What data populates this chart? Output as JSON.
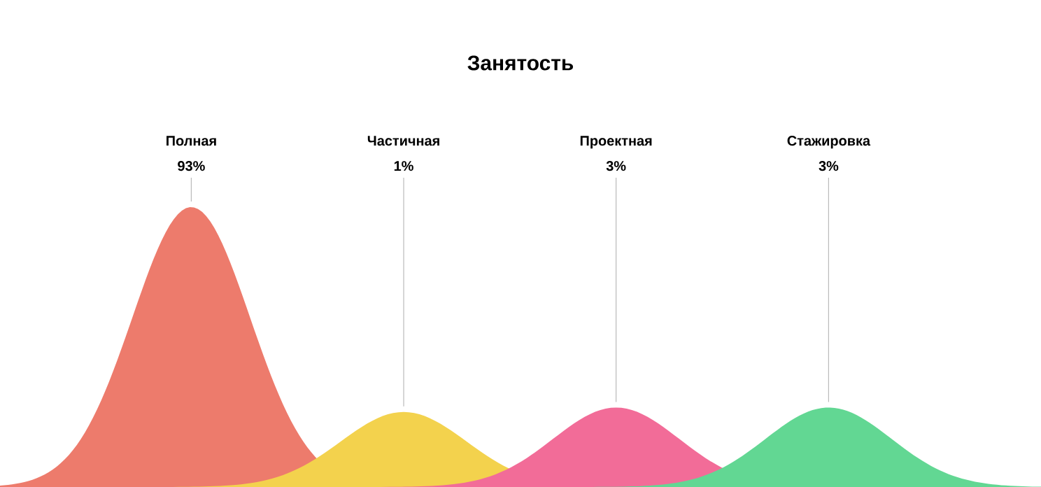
{
  "chart_data": {
    "type": "other",
    "title": "Занятость",
    "categories": [
      "Полная",
      "Частичная",
      "Проектная",
      "Стажировка"
    ],
    "values": [
      93,
      1,
      3,
      3
    ],
    "value_labels": [
      "93%",
      "1%",
      "3%",
      "3%"
    ],
    "colors": [
      "#ed7b6c",
      "#f3d24d",
      "#f26c98",
      "#62d793"
    ]
  }
}
